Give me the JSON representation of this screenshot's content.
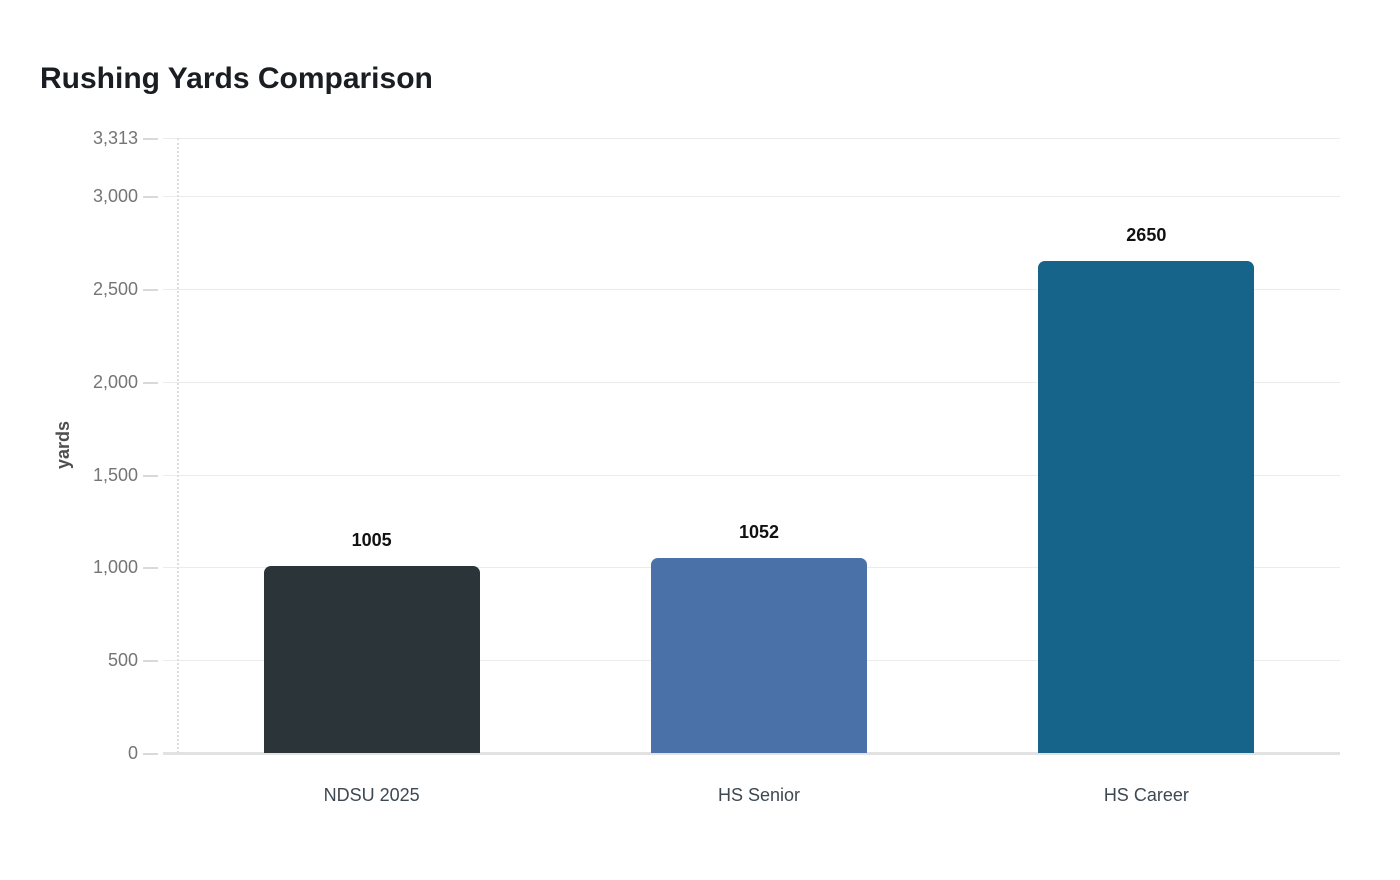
{
  "chart_data": {
    "type": "bar",
    "title": "Rushing Yards Comparison",
    "xlabel": "",
    "ylabel": "yards",
    "categories": [
      "NDSU 2025",
      "HS Senior",
      "HS Career"
    ],
    "values": [
      1005,
      1052,
      2650
    ],
    "value_labels": [
      "1005",
      "1052",
      "2650"
    ],
    "bar_colors": [
      "#2b3439",
      "#4b71a9",
      "#17648a"
    ],
    "ylim": [
      0,
      3313
    ],
    "grid": true,
    "legend": "none",
    "yticks": [
      {
        "value": 0,
        "label": "0"
      },
      {
        "value": 500,
        "label": "500"
      },
      {
        "value": 1000,
        "label": "1,000"
      },
      {
        "value": 1500,
        "label": "1,500"
      },
      {
        "value": 2000,
        "label": "2,000"
      },
      {
        "value": 2500,
        "label": "2,500"
      },
      {
        "value": 3000,
        "label": "3,000"
      },
      {
        "value": 3313,
        "label": "3,313"
      }
    ],
    "colors": {
      "background": "#ffffff",
      "title_text": "#1a1d21",
      "tick_text": "#757575",
      "category_text": "#3d4852",
      "value_text": "#111111",
      "gridline": "#ececec",
      "baseline": "#e2e2e2",
      "axis_label_text": "#4f4f4f"
    }
  }
}
